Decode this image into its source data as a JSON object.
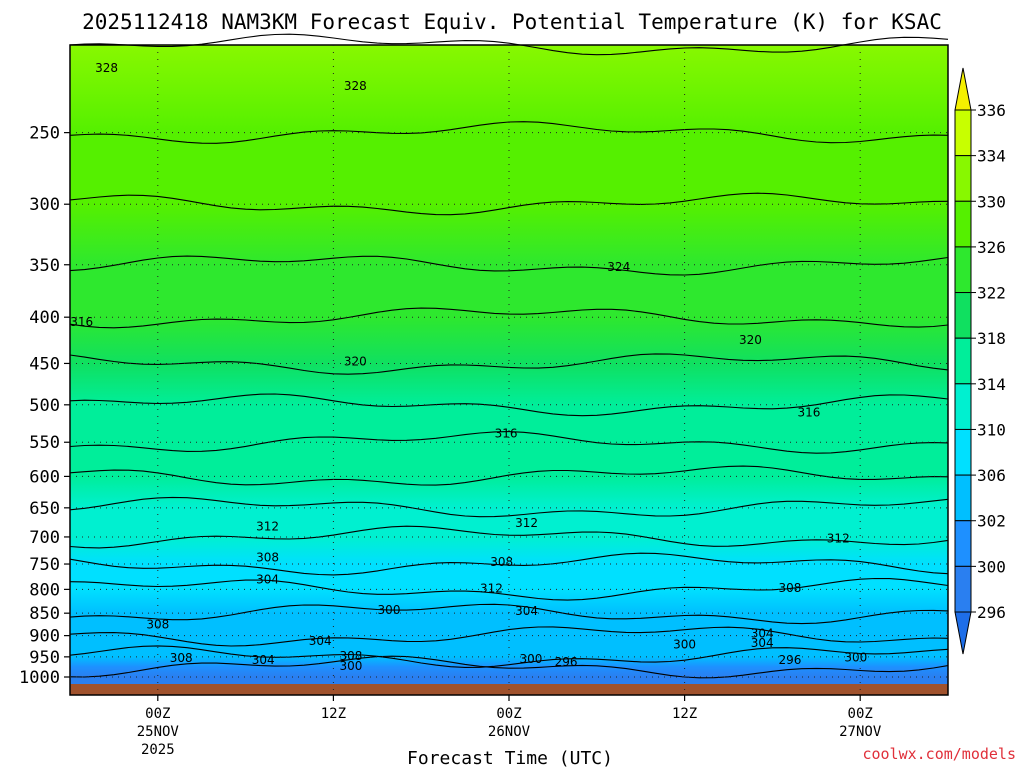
{
  "chart_data": {
    "type": "heatmap",
    "title": "2025112418 NAM3KM Forecast Equiv. Potential Temperature (K) for KSAC",
    "xlabel": "Forecast Time (UTC)",
    "credit": "coolwx.com/models",
    "y_ticks": [
      "250",
      "300",
      "350",
      "400",
      "450",
      "500",
      "550",
      "600",
      "650",
      "700",
      "750",
      "800",
      "850",
      "900",
      "950",
      "1000"
    ],
    "y_values": [
      250,
      300,
      350,
      400,
      450,
      500,
      550,
      600,
      650,
      700,
      750,
      800,
      850,
      900,
      950,
      1000
    ],
    "ylim": [
      1000,
      200
    ],
    "x_ticks": [
      {
        "hour": 6,
        "lines": [
          "00Z",
          "25NOV",
          "2025"
        ]
      },
      {
        "hour": 18,
        "lines": [
          "12Z"
        ]
      },
      {
        "hour": 30,
        "lines": [
          "00Z",
          "26NOV"
        ]
      },
      {
        "hour": 42,
        "lines": [
          "12Z"
        ]
      },
      {
        "hour": 54,
        "lines": [
          "00Z",
          "27NOV"
        ]
      }
    ],
    "xlim": [
      0,
      60
    ],
    "colorbar": {
      "levels": [
        "296",
        "300",
        "302",
        "306",
        "310",
        "314",
        "318",
        "322",
        "326",
        "330",
        "334",
        "336"
      ],
      "colors": [
        "#1e6ee8",
        "#2a7ff0",
        "#1e90ff",
        "#00bfff",
        "#00e0ff",
        "#00f0d0",
        "#00ee9a",
        "#10e060",
        "#2ee82e",
        "#55f000",
        "#88f800",
        "#c8ff00",
        "#f5f000"
      ]
    },
    "theta_e_profile": [
      {
        "p": 1000,
        "value": 298
      },
      {
        "p": 975,
        "value": 300
      },
      {
        "p": 950,
        "value": 302
      },
      {
        "p": 900,
        "value": 304
      },
      {
        "p": 850,
        "value": 304
      },
      {
        "p": 800,
        "value": 308
      },
      {
        "p": 750,
        "value": 308
      },
      {
        "p": 700,
        "value": 312
      },
      {
        "p": 650,
        "value": 312
      },
      {
        "p": 600,
        "value": 314
      },
      {
        "p": 550,
        "value": 316
      },
      {
        "p": 500,
        "value": 317
      },
      {
        "p": 450,
        "value": 320
      },
      {
        "p": 400,
        "value": 322
      },
      {
        "p": 350,
        "value": 324
      },
      {
        "p": 300,
        "value": 326
      },
      {
        "p": 250,
        "value": 328
      },
      {
        "p": 200,
        "value": 330
      }
    ],
    "contours": [
      {
        "value": "328",
        "hour": 2.5,
        "p": 212
      },
      {
        "value": "328",
        "hour": 19.5,
        "p": 222
      },
      {
        "value": "324",
        "hour": 37.5,
        "p": 352
      },
      {
        "value": "320",
        "hour": 19.5,
        "p": 448
      },
      {
        "value": "320",
        "hour": 46.5,
        "p": 424
      },
      {
        "value": "316",
        "hour": 0.8,
        "p": 405
      },
      {
        "value": "316",
        "hour": 29.8,
        "p": 538
      },
      {
        "value": "316",
        "hour": 50.5,
        "p": 510
      },
      {
        "value": "312",
        "hour": 13.5,
        "p": 682
      },
      {
        "value": "312",
        "hour": 31.2,
        "p": 676
      },
      {
        "value": "312",
        "hour": 28.8,
        "p": 798
      },
      {
        "value": "312",
        "hour": 52.5,
        "p": 703
      },
      {
        "value": "308",
        "hour": 13.5,
        "p": 738
      },
      {
        "value": "308",
        "hour": 29.5,
        "p": 746
      },
      {
        "value": "308",
        "hour": 6,
        "p": 875
      },
      {
        "value": "308",
        "hour": 7.6,
        "p": 953
      },
      {
        "value": "308",
        "hour": 19.2,
        "p": 948
      },
      {
        "value": "308",
        "hour": 49.2,
        "p": 797
      },
      {
        "value": "304",
        "hour": 13.5,
        "p": 780
      },
      {
        "value": "304",
        "hour": 31.2,
        "p": 845
      },
      {
        "value": "304",
        "hour": 17.1,
        "p": 912
      },
      {
        "value": "304",
        "hour": 13.2,
        "p": 958
      },
      {
        "value": "304",
        "hour": 47.3,
        "p": 895
      },
      {
        "value": "304",
        "hour": 47.3,
        "p": 917
      },
      {
        "value": "300",
        "hour": 21.8,
        "p": 843
      },
      {
        "value": "300",
        "hour": 19.2,
        "p": 972
      },
      {
        "value": "300",
        "hour": 31.5,
        "p": 955
      },
      {
        "value": "300",
        "hour": 42,
        "p": 920
      },
      {
        "value": "300",
        "hour": 53.7,
        "p": 952
      },
      {
        "value": "296",
        "hour": 33.9,
        "p": 962
      },
      {
        "value": "296",
        "hour": 49.2,
        "p": 958
      }
    ]
  }
}
